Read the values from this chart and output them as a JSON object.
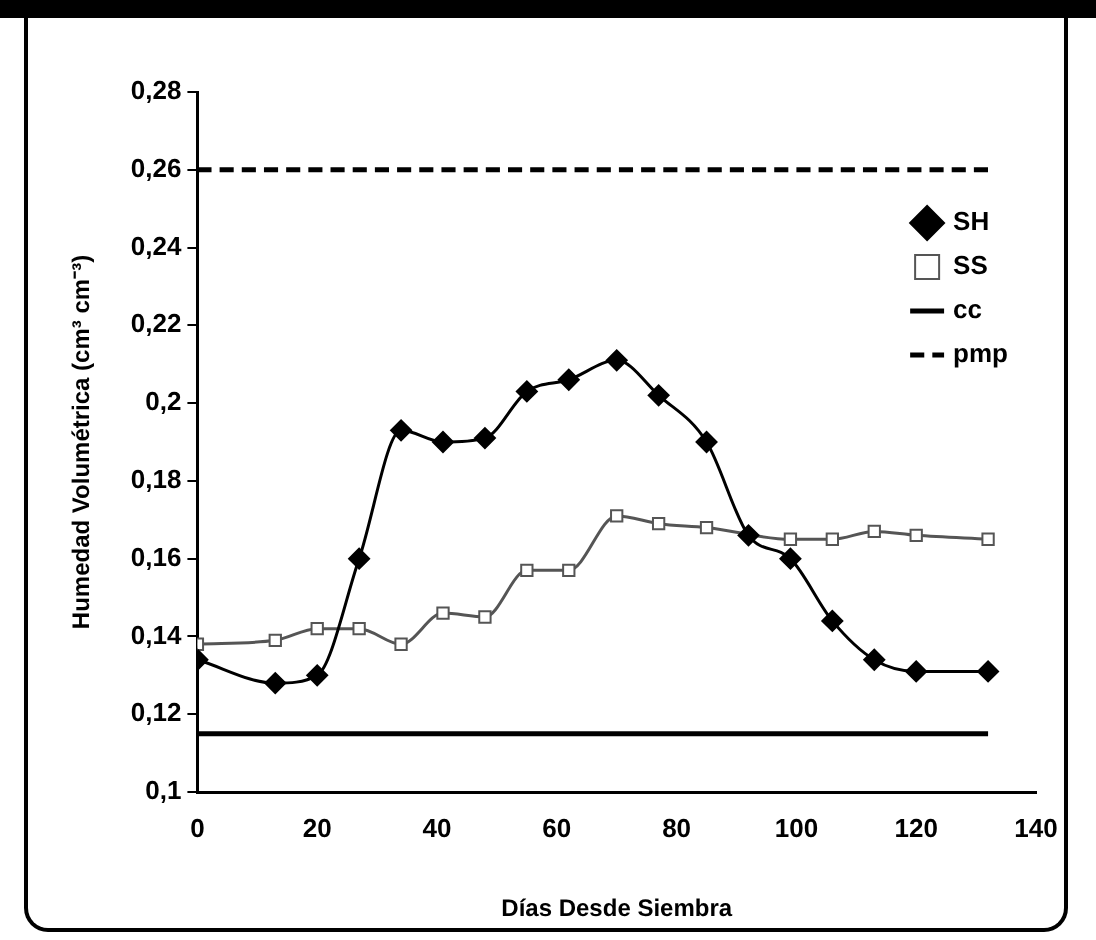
{
  "chart_data": {
    "type": "line",
    "xlabel": "Días Desde Siembra",
    "ylabel": "Humedad Volumétrica (cm³ cm⁻³)",
    "xlim": [
      0,
      140
    ],
    "xticks": [
      0,
      20,
      40,
      60,
      80,
      100,
      120,
      140
    ],
    "ylim": [
      0.1,
      0.28
    ],
    "yticks": [
      {
        "value": 0.1,
        "label": "0,1"
      },
      {
        "value": 0.12,
        "label": "0,12"
      },
      {
        "value": 0.14,
        "label": "0,14"
      },
      {
        "value": 0.16,
        "label": "0,16"
      },
      {
        "value": 0.18,
        "label": "0,18"
      },
      {
        "value": 0.2,
        "label": "0,2"
      },
      {
        "value": 0.22,
        "label": "0,22"
      },
      {
        "value": 0.24,
        "label": "0,24"
      },
      {
        "value": 0.26,
        "label": "0,26"
      },
      {
        "value": 0.28,
        "label": "0,28"
      }
    ],
    "grid": false,
    "legend": "top right",
    "series": [
      {
        "name": "SH",
        "color": "#000000",
        "marker": "diamond",
        "line_style": "solid",
        "x": [
          0,
          13,
          20,
          27,
          34,
          41,
          48,
          55,
          62,
          70,
          77,
          85,
          92,
          99,
          106,
          113,
          120,
          132
        ],
        "values": [
          0.134,
          0.128,
          0.13,
          0.16,
          0.193,
          0.19,
          0.191,
          0.203,
          0.206,
          0.211,
          0.202,
          0.19,
          0.166,
          0.16,
          0.144,
          0.134,
          0.131,
          0.131
        ]
      },
      {
        "name": "SS",
        "color": "#555555",
        "marker": "square",
        "line_style": "solid",
        "x": [
          0,
          13,
          20,
          27,
          34,
          41,
          48,
          55,
          62,
          70,
          77,
          85,
          92,
          99,
          106,
          113,
          120,
          132
        ],
        "values": [
          0.138,
          0.139,
          0.142,
          0.142,
          0.138,
          0.146,
          0.145,
          0.157,
          0.157,
          0.171,
          0.169,
          0.168,
          null,
          0.165,
          0.165,
          0.167,
          0.166,
          0.165
        ]
      },
      {
        "name": "cc",
        "color": "#000000",
        "marker": "none",
        "line_style": "solid",
        "x": [
          0,
          132
        ],
        "values": [
          0.115,
          0.115
        ]
      },
      {
        "name": "pmp",
        "color": "#000000",
        "marker": "none",
        "line_style": "dashed",
        "x": [
          0,
          132
        ],
        "values": [
          0.26,
          0.26
        ]
      }
    ]
  }
}
